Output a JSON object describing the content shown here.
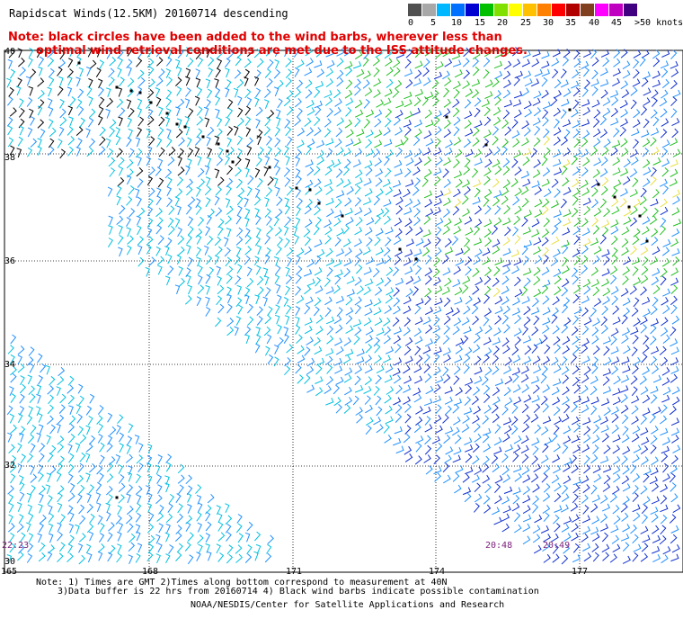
{
  "header": {
    "title": "Rapidscat Winds(12.5KM) 20160714 descending",
    "note_line1": "Note: black circles have been added to the wind barbs, wherever less than",
    "note_line2": "optimal wind retrieval conditions are met due to the ISS attitude changes."
  },
  "legend": {
    "labels": [
      "0",
      "5",
      "10",
      "15",
      "20",
      "25",
      "30",
      "35",
      "40",
      "45",
      ">50 knots"
    ],
    "colors": [
      "#505050",
      "#a8a8a8",
      "#00b8ff",
      "#0070ff",
      "#0000d0",
      "#00c000",
      "#80e000",
      "#ffff00",
      "#ffc000",
      "#ff8000",
      "#ff0000",
      "#b00000",
      "#804020",
      "#ff00ff",
      "#c000c0",
      "#400080"
    ]
  },
  "map": {
    "lat_labels": [
      "40",
      "38",
      "36",
      "34",
      "32",
      "30"
    ],
    "lon_labels": [
      "165",
      "168",
      "171",
      "174",
      "177"
    ],
    "time_labels": [
      "22:23",
      "20:48",
      "20:49"
    ]
  },
  "footer": {
    "line1": "Note: 1) Times are GMT 2)Times along bottom correspond to measurement at 40N",
    "line2": "3)Data buffer is 22 hrs from 20160714 4) Black wind barbs indicate possible contamination",
    "line3": "NOAA/NESDIS/Center for Satellite Applications and Research"
  }
}
